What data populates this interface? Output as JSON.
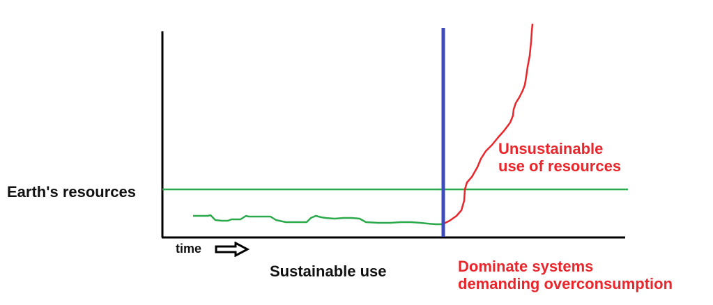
{
  "labels": {
    "earth_resources": "Earth's resources",
    "time": "time",
    "sustainable_use": "Sustainable use",
    "unsustainable": [
      "Unsustainable",
      "use of resources"
    ],
    "dominate": [
      "Dominate systems",
      "demanding overconsumption"
    ]
  },
  "icons": {
    "time_arrow": "right-arrow-icon"
  },
  "colors": {
    "axis": "#000000",
    "resource_line": "#2aa84a",
    "sustainable_curve": "#2aa84a",
    "divider": "#3d4bbf",
    "unsustainable_curve": "#e8262b",
    "red_text": "#e8262b"
  }
}
